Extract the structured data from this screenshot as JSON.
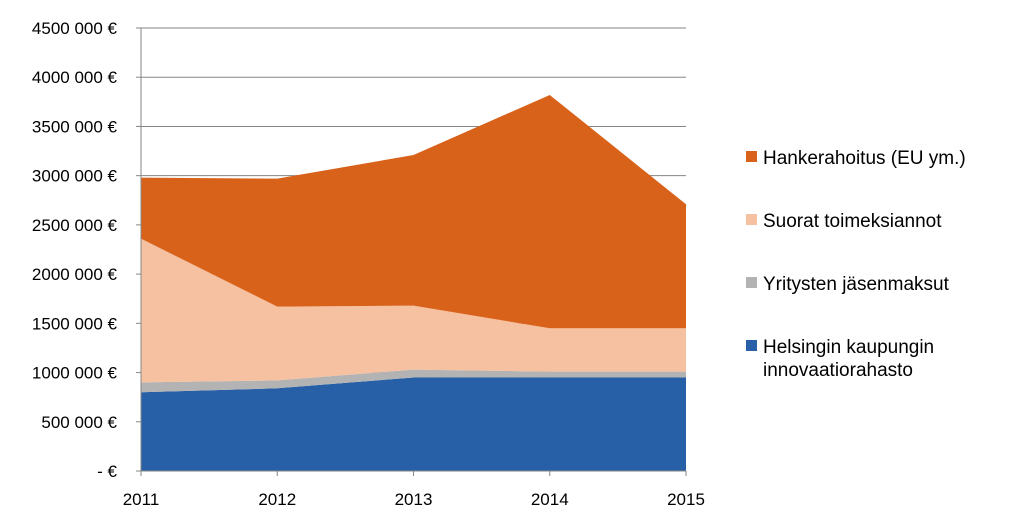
{
  "chart_data": {
    "type": "area",
    "stacked": true,
    "x": [
      "2011",
      "2012",
      "2013",
      "2014",
      "2015"
    ],
    "ylim": [
      0,
      4500000
    ],
    "y_ticks": [
      0,
      500000,
      1000000,
      1500000,
      2000000,
      2500000,
      3000000,
      3500000,
      4000000,
      4500000
    ],
    "y_tick_labels": [
      "-  €",
      "500 000 €",
      "1000 000 €",
      "1500 000 €",
      "2000 000 €",
      "2500 000 €",
      "3000 000 €",
      "3500 000 €",
      "4000 000 €",
      "4500 000 €"
    ],
    "grid": "horizontal",
    "legend_position": "right",
    "series": [
      {
        "name": "Helsingin kaupungin innovaatiorahasto",
        "legend_lines": [
          "Helsingin kaupungin",
          "innovaatiorahasto"
        ],
        "color": "#2860a8",
        "values": [
          800000,
          840000,
          950000,
          950000,
          950000
        ]
      },
      {
        "name": "Yritysten jäsenmaksut",
        "legend_lines": [
          "Yritysten jäsenmaksut"
        ],
        "color": "#b3b3b3",
        "values": [
          100000,
          80000,
          80000,
          60000,
          60000
        ]
      },
      {
        "name": "Suorat toimeksiannot",
        "legend_lines": [
          "Suorat toimeksiannot"
        ],
        "color": "#f5c1a0",
        "values": [
          1460000,
          750000,
          650000,
          440000,
          440000
        ]
      },
      {
        "name": "Hankerahoitus (EU ym.)",
        "legend_lines": [
          "Hankerahoitus (EU ym.)"
        ],
        "color": "#d9621a",
        "values": [
          620000,
          1300000,
          1530000,
          2370000,
          1260000
        ]
      }
    ]
  }
}
